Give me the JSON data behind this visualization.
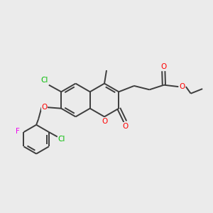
{
  "bg_color": "#ebebeb",
  "bond_color": "#3d3d3d",
  "atom_colors": {
    "O": "#ff0000",
    "Cl": "#00bb00",
    "F": "#ee00ee"
  }
}
